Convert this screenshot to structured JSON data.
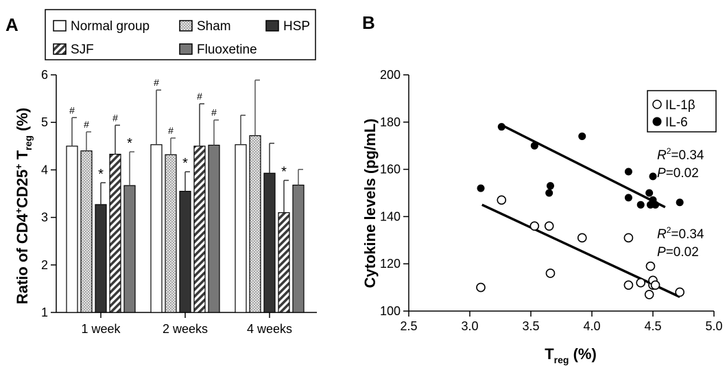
{
  "panels": {
    "a": {
      "label": "A"
    },
    "b": {
      "label": "B"
    }
  },
  "chart_data": [
    {
      "type": "bar",
      "panel": "A",
      "categories": [
        "1 week",
        "2 weeks",
        "4 weeks"
      ],
      "ylabel": {
        "main": "Ratio of CD4",
        "sup1": "+",
        "mid": "CD25",
        "sup2": "+",
        "t": " T",
        "sub": "reg",
        "unit": " (%)"
      },
      "ylim": [
        1,
        6
      ],
      "yticks": [
        "1",
        "2",
        "3",
        "4",
        "5",
        "6"
      ],
      "legend": {
        "placement": "top",
        "entries": [
          "Normal group",
          "Sham",
          "HSP",
          "SJF",
          "Fluoxetine"
        ]
      },
      "series": [
        {
          "name": "Normal group",
          "values": [
            4.5,
            4.53,
            4.53
          ],
          "errors": [
            0.6,
            1.15,
            0.62
          ],
          "marks": [
            "#",
            "#",
            ""
          ]
        },
        {
          "name": "Sham",
          "values": [
            4.4,
            4.32,
            4.72
          ],
          "errors": [
            0.4,
            0.35,
            1.17
          ],
          "marks": [
            "#",
            "#",
            ""
          ]
        },
        {
          "name": "HSP",
          "values": [
            3.27,
            3.55,
            3.93
          ],
          "errors": [
            0.46,
            0.41,
            0.63
          ],
          "marks": [
            "*",
            "*",
            ""
          ]
        },
        {
          "name": "SJF",
          "values": [
            4.33,
            4.5,
            3.1
          ],
          "errors": [
            0.61,
            0.89,
            0.68
          ],
          "marks": [
            "#",
            "#",
            "*"
          ]
        },
        {
          "name": "Fluoxetine",
          "values": [
            3.67,
            4.52,
            3.68
          ],
          "errors": [
            0.71,
            0.53,
            0.33
          ],
          "marks": [
            "*",
            "#",
            ""
          ]
        }
      ],
      "colors": {
        "Normal group": "#ffffff",
        "Sham": "#d6d6d6",
        "HSP": "#333333",
        "SJF": "#d9d9d9",
        "Fluoxetine": "#777777"
      }
    },
    {
      "type": "scatter",
      "panel": "B",
      "xlabel": {
        "main": "T",
        "sub": "reg",
        "unit": " (%)"
      },
      "ylabel": "Cytokine levels (pg/mL)",
      "xlim": [
        2.5,
        5.0
      ],
      "ylim": [
        100,
        200
      ],
      "xticks": [
        "2.5",
        "3.0",
        "3.5",
        "4.0",
        "4.5",
        "5.0"
      ],
      "yticks": [
        "100",
        "120",
        "140",
        "160",
        "180",
        "200"
      ],
      "legend": {
        "placement": "top-right",
        "entries": [
          "IL-1β",
          "IL-6"
        ]
      },
      "series": [
        {
          "name": "IL-1β",
          "marker": "open-circle",
          "points": [
            [
              3.09,
              110
            ],
            [
              3.26,
              147
            ],
            [
              3.53,
              136
            ],
            [
              3.65,
              136
            ],
            [
              3.66,
              116
            ],
            [
              3.92,
              131
            ],
            [
              4.3,
              131
            ],
            [
              4.3,
              111
            ],
            [
              4.4,
              112
            ],
            [
              4.47,
              107
            ],
            [
              4.48,
              119
            ],
            [
              4.5,
              111
            ],
            [
              4.5,
              113
            ],
            [
              4.52,
              111
            ],
            [
              4.72,
              108
            ]
          ],
          "fit": [
            [
              3.1,
              145
            ],
            [
              4.72,
              106
            ]
          ],
          "annotation": {
            "r2_label": "R",
            "r2_exp": "2",
            "r2_value": "=0.34",
            "p_label": "P",
            "p_value": "=0.02"
          }
        },
        {
          "name": "IL-6",
          "marker": "filled-circle",
          "points": [
            [
              3.09,
              152
            ],
            [
              3.26,
              178
            ],
            [
              3.53,
              170
            ],
            [
              3.65,
              150
            ],
            [
              3.66,
              153
            ],
            [
              3.92,
              174
            ],
            [
              4.3,
              159
            ],
            [
              4.3,
              148
            ],
            [
              4.4,
              145
            ],
            [
              4.47,
              150
            ],
            [
              4.48,
              145
            ],
            [
              4.5,
              157
            ],
            [
              4.5,
              147
            ],
            [
              4.52,
              145
            ],
            [
              4.72,
              146
            ]
          ],
          "fit": [
            [
              3.25,
              179
            ],
            [
              4.6,
              144
            ]
          ],
          "annotation": {
            "r2_label": "R",
            "r2_exp": "2",
            "r2_value": "=0.34",
            "p_label": "P",
            "p_value": "=0.02"
          }
        }
      ]
    }
  ]
}
